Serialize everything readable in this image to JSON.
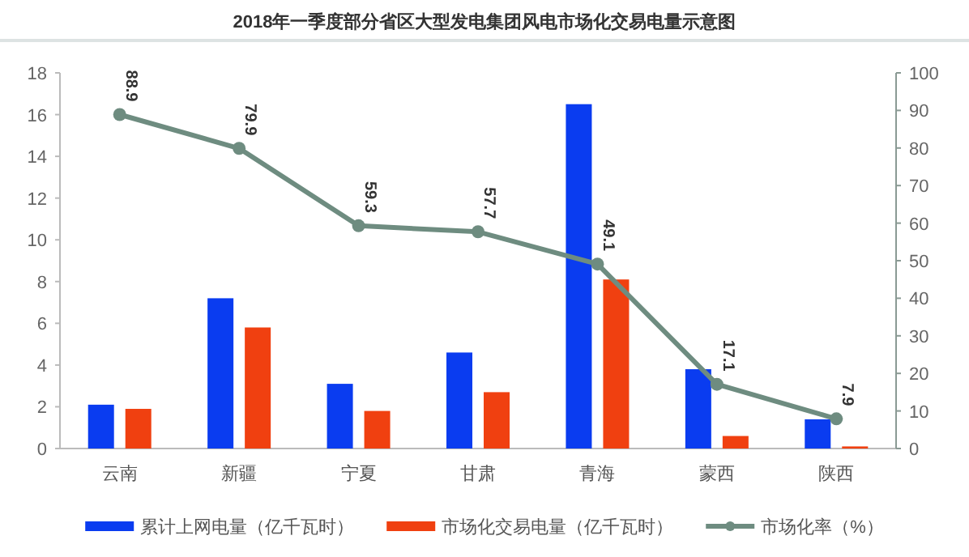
{
  "chart_data": {
    "type": "bar",
    "title": "2018年一季度部分省区大型发电集团风电市场化交易电量示意图",
    "categories": [
      "云南",
      "新疆",
      "宁夏",
      "甘肃",
      "青海",
      "蒙西",
      "陕西"
    ],
    "series": [
      {
        "name": "累计上网电量（亿千瓦时）",
        "color": "#0a3cf0",
        "values": [
          2.1,
          7.2,
          3.1,
          4.6,
          16.5,
          3.8,
          1.4
        ]
      },
      {
        "name": "市场化交易电量（亿千瓦时）",
        "color": "#f04010",
        "values": [
          1.9,
          5.8,
          1.8,
          2.7,
          8.1,
          0.6,
          0.1
        ]
      },
      {
        "name": "市场化率（%）",
        "type": "line",
        "axis": "y2",
        "color": "#6e8c80",
        "marker": "circle",
        "values": [
          88.9,
          79.9,
          59.3,
          57.7,
          49.1,
          17.1,
          7.9
        ],
        "value_labels": [
          "88.9",
          "79.9",
          "59.3",
          "57.7",
          "49.1",
          "17.1",
          "7.9"
        ]
      }
    ],
    "ylim": [
      0,
      18
    ],
    "yticks": [
      0,
      2,
      4,
      6,
      8,
      10,
      12,
      14,
      16,
      18
    ],
    "y2lim": [
      0,
      100
    ],
    "y2ticks": [
      0,
      10,
      20,
      30,
      40,
      50,
      60,
      70,
      80,
      90,
      100
    ],
    "legend": "bottom"
  }
}
